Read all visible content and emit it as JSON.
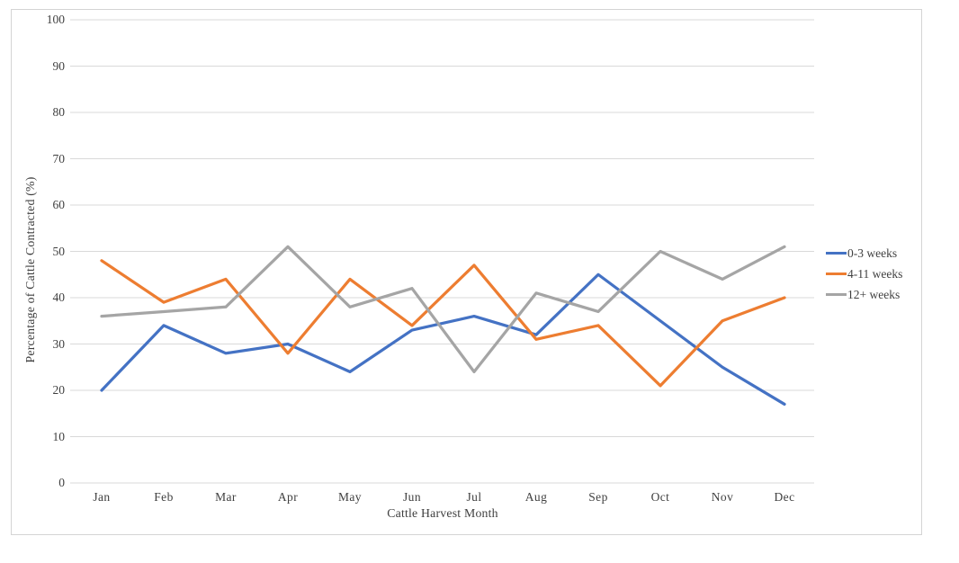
{
  "chart_data": {
    "type": "line",
    "title": "",
    "xlabel": "Cattle Harvest Month",
    "ylabel": "Percentage of Cattle Contracted (%)",
    "categories": [
      "Jan",
      "Feb",
      "Mar",
      "Apr",
      "May",
      "Jun",
      "Jul",
      "Aug",
      "Sep",
      "Oct",
      "Nov",
      "Dec"
    ],
    "y_ticks": [
      0,
      10,
      20,
      30,
      40,
      50,
      60,
      70,
      80,
      90,
      100
    ],
    "ylim": [
      0,
      100
    ],
    "grid": "horizontal",
    "legend_position": "right",
    "series": [
      {
        "name": "0-3 weeks",
        "color": "#4472C4",
        "values": [
          20,
          34,
          28,
          30,
          24,
          33,
          36,
          32,
          45,
          35,
          25,
          17
        ]
      },
      {
        "name": "4-11 weeks",
        "color": "#ED7D31",
        "values": [
          48,
          39,
          44,
          28,
          44,
          34,
          47,
          31,
          34,
          21,
          35,
          40
        ]
      },
      {
        "name": "12+ weeks",
        "color": "#A5A5A5",
        "values": [
          36,
          37,
          38,
          51,
          38,
          42,
          24,
          41,
          37,
          50,
          44,
          51
        ]
      }
    ]
  },
  "colors": {
    "gridline": "#D9D9D9",
    "frame_border": "#D4D4D4",
    "axis_text": "#3F3F3F"
  }
}
